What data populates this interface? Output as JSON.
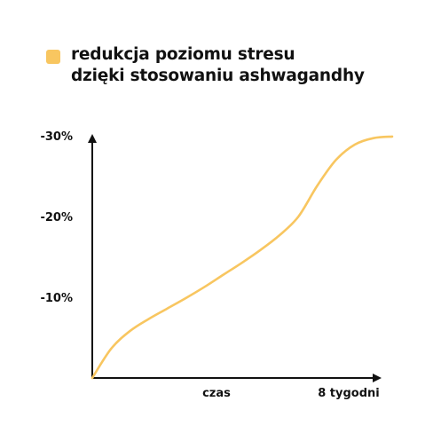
{
  "chart_data": {
    "type": "line",
    "title": "",
    "xlabel": "",
    "ylabel": "",
    "x_tick_labels": [
      "czas",
      "8 tygodni"
    ],
    "y_tick_labels": [
      "-10%",
      "-20%",
      "-30%"
    ],
    "ylim": [
      0,
      -30
    ],
    "grid": false,
    "legend_position": "top-left",
    "series": [
      {
        "name": "redukcja poziomu stresu dzięki stosowaniu ashwagandhy",
        "color": "#F8C660",
        "x": [
          0,
          0.5,
          1,
          1.5,
          2,
          2.5,
          3,
          3.5,
          4,
          4.5,
          5,
          5.5,
          6,
          6.5,
          7,
          7.5,
          8
        ],
        "values": [
          0,
          -3.6,
          -5.8,
          -7.3,
          -8.6,
          -9.9,
          -11.3,
          -12.8,
          -14.3,
          -15.9,
          -17.7,
          -20.0,
          -23.8,
          -27.0,
          -28.9,
          -29.7,
          -29.9
        ]
      }
    ]
  },
  "legend": {
    "line1": "redukcja poziomu stresu",
    "line2": "dzięki stosowaniu ashwagandhy",
    "swatch_color": "#F8C660"
  }
}
